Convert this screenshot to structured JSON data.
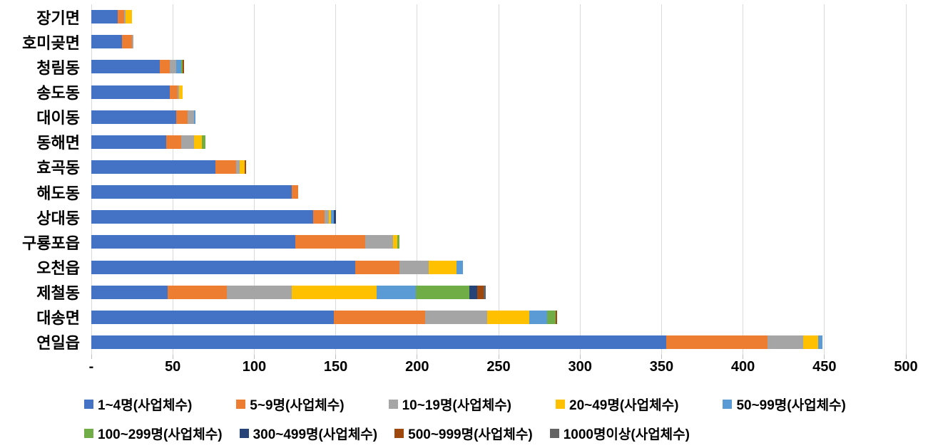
{
  "chart_data": {
    "type": "bar",
    "orientation": "horizontal-stacked",
    "title": "",
    "xlabel": "",
    "ylabel": "",
    "xlim": [
      0,
      500
    ],
    "x_tick_step": 50,
    "x_ticks": [
      "-",
      "50",
      "100",
      "150",
      "200",
      "250",
      "300",
      "350",
      "400",
      "450",
      "500"
    ],
    "grid": "vertical",
    "gridline_color": "#d9d9d9",
    "legend_position": "bottom",
    "categories": [
      "장기면",
      "호미곶면",
      "청림동",
      "송도동",
      "대이동",
      "동해면",
      "효곡동",
      "해도동",
      "상대동",
      "구룡포읍",
      "오천읍",
      "제철동",
      "대송면",
      "연일읍"
    ],
    "series": [
      {
        "name": "1~4명(사업체수)",
        "color": "#4472C4",
        "values": [
          16,
          19,
          42,
          48,
          52,
          46,
          76,
          123,
          136,
          125,
          162,
          47,
          149,
          353
        ]
      },
      {
        "name": "5~9명(사업체수)",
        "color": "#ED7D31",
        "values": [
          4,
          6,
          6,
          5,
          7,
          9,
          13,
          4,
          7,
          43,
          27,
          36,
          56,
          62
        ]
      },
      {
        "name": "10~19명(사업체수)",
        "color": "#A5A5A5",
        "values": [
          1,
          1,
          4,
          1,
          4,
          8,
          2,
          0,
          3,
          17,
          18,
          40,
          38,
          22
        ]
      },
      {
        "name": "20~49명(사업체수)",
        "color": "#FFC000",
        "values": [
          4,
          0,
          0,
          2,
          0,
          5,
          3,
          0,
          1,
          3,
          17,
          52,
          26,
          9
        ]
      },
      {
        "name": "50~99명(사업체수)",
        "color": "#5B9BD5",
        "values": [
          0,
          0,
          3,
          0,
          1,
          0,
          0,
          0,
          2,
          0,
          4,
          24,
          11,
          3
        ]
      },
      {
        "name": "100~299명(사업체수)",
        "color": "#70AD47",
        "values": [
          0,
          0,
          1,
          0,
          0,
          2,
          0,
          0,
          0,
          1,
          0,
          33,
          5,
          0
        ]
      },
      {
        "name": "300~499명(사업체수)",
        "color": "#264478",
        "values": [
          0,
          0,
          0,
          0,
          0,
          0,
          0,
          0,
          1,
          0,
          0,
          5,
          0,
          0
        ]
      },
      {
        "name": "500~999명(사업체수)",
        "color": "#9E480E",
        "values": [
          0,
          0,
          1,
          0,
          0,
          0,
          1,
          0,
          0,
          0,
          0,
          4,
          1,
          0
        ]
      },
      {
        "name": "1000명이상(사업체수)",
        "color": "#636363",
        "values": [
          0,
          0,
          0,
          0,
          0,
          0,
          0,
          0,
          0,
          0,
          0,
          1,
          0,
          0
        ]
      }
    ],
    "legend_rows": [
      [
        0,
        1,
        2,
        3,
        4
      ],
      [
        5,
        6,
        7,
        8
      ]
    ]
  }
}
